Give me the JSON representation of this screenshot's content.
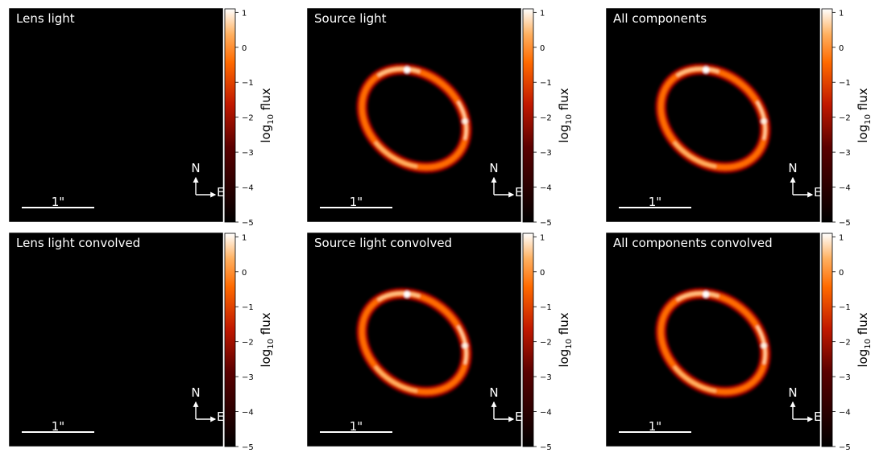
{
  "chart_data": [
    {
      "type": "heatmap",
      "title": "Lens light",
      "content": "empty",
      "scale_bar_label": "1\"",
      "compass": {
        "north": "N",
        "east": "E"
      },
      "colorbar": {
        "label_base": "log",
        "label_sub": "10",
        "label_tail": " flux",
        "ticks": [
          "1",
          "0",
          "−1",
          "−2",
          "−3",
          "−4",
          "−5"
        ],
        "range": [
          -5,
          1.1
        ],
        "cmap": "gist_heat"
      }
    },
    {
      "type": "heatmap",
      "title": "Source light",
      "content": "ring",
      "scale_bar_label": "1\"",
      "compass": {
        "north": "N",
        "east": "E"
      },
      "colorbar": {
        "label_base": "log",
        "label_sub": "10",
        "label_tail": " flux",
        "ticks": [
          "1",
          "0",
          "−1",
          "−2",
          "−3",
          "−4",
          "−5"
        ],
        "range": [
          -5,
          1.1
        ],
        "cmap": "gist_heat"
      }
    },
    {
      "type": "heatmap",
      "title": "All components",
      "content": "ring",
      "scale_bar_label": "1\"",
      "compass": {
        "north": "N",
        "east": "E"
      },
      "colorbar": {
        "label_base": "log",
        "label_sub": "10",
        "label_tail": " flux",
        "ticks": [
          "1",
          "0",
          "−1",
          "−2",
          "−3",
          "−4",
          "−5"
        ],
        "range": [
          -5,
          1.1
        ],
        "cmap": "gist_heat"
      }
    },
    {
      "type": "heatmap",
      "title": "Lens light convolved",
      "content": "empty",
      "scale_bar_label": "1\"",
      "compass": {
        "north": "N",
        "east": "E"
      },
      "colorbar": {
        "label_base": "log",
        "label_sub": "10",
        "label_tail": " flux",
        "ticks": [
          "1",
          "0",
          "−1",
          "−2",
          "−3",
          "−4",
          "−5"
        ],
        "range": [
          -5,
          1.1
        ],
        "cmap": "gist_heat"
      }
    },
    {
      "type": "heatmap",
      "title": "Source light convolved",
      "content": "ring",
      "scale_bar_label": "1\"",
      "compass": {
        "north": "N",
        "east": "E"
      },
      "colorbar": {
        "label_base": "log",
        "label_sub": "10",
        "label_tail": " flux",
        "ticks": [
          "1",
          "0",
          "−1",
          "−2",
          "−3",
          "−4",
          "−5"
        ],
        "range": [
          -5,
          1.1
        ],
        "cmap": "gist_heat"
      }
    },
    {
      "type": "heatmap",
      "title": "All components convolved",
      "content": "ring",
      "scale_bar_label": "1\"",
      "compass": {
        "north": "N",
        "east": "E"
      },
      "colorbar": {
        "label_base": "log",
        "label_sub": "10",
        "label_tail": " flux",
        "ticks": [
          "1",
          "0",
          "−1",
          "−2",
          "−3",
          "−4",
          "−5"
        ],
        "range": [
          -5,
          1.1
        ],
        "cmap": "gist_heat"
      }
    }
  ]
}
